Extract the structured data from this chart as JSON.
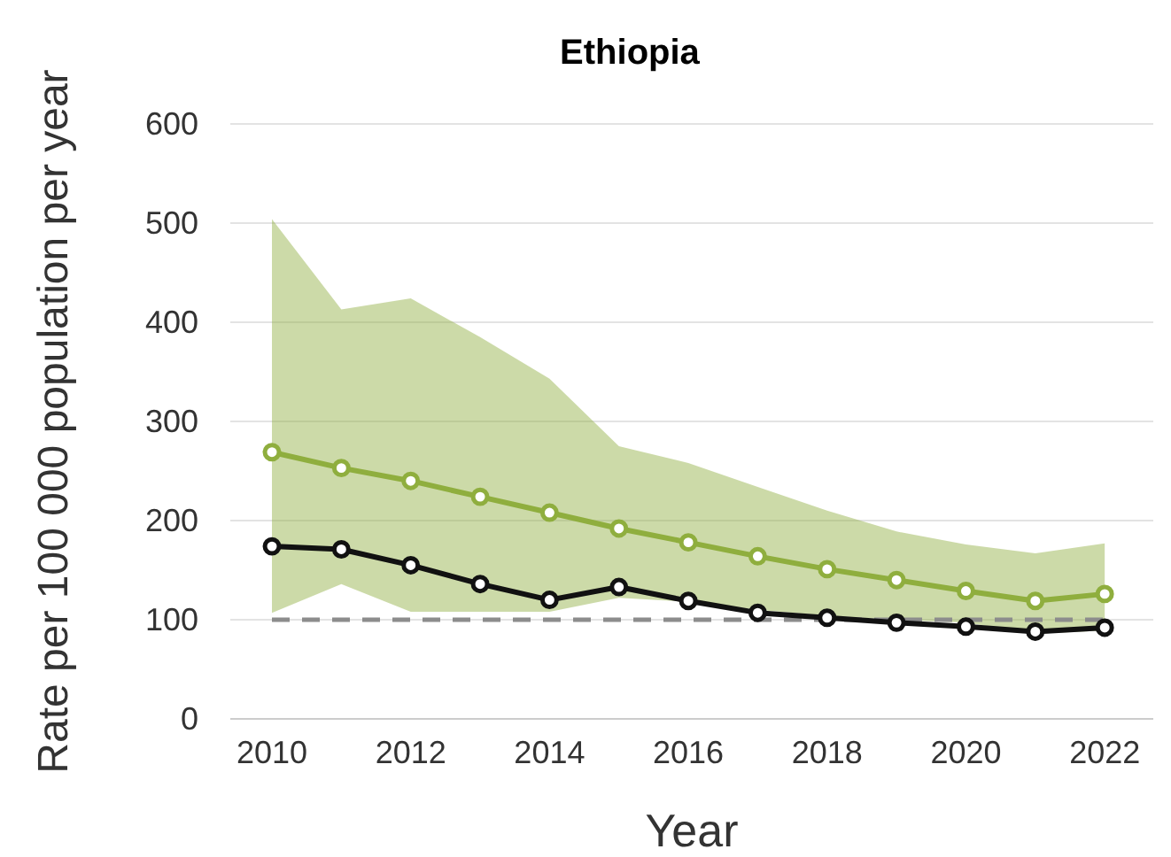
{
  "chart_data": {
    "type": "line",
    "title": "Ethiopia",
    "xlabel": "Year",
    "ylabel": "Rate per 100 000 population per year",
    "x": [
      2010,
      2011,
      2012,
      2013,
      2014,
      2015,
      2016,
      2017,
      2018,
      2019,
      2020,
      2021,
      2022
    ],
    "xlim": [
      2009.4,
      2022.7
    ],
    "xticks": [
      2010,
      2012,
      2014,
      2016,
      2018,
      2020,
      2022
    ],
    "ylim": [
      0,
      600
    ],
    "yticks": [
      0,
      100,
      200,
      300,
      400,
      500,
      600
    ],
    "grid": "y",
    "marker": "circle",
    "line_style": "solid",
    "ref_lines": [
      {
        "axis": "y",
        "value": 100,
        "color": "#8c8c8c",
        "line_style": "dashed"
      }
    ],
    "series": [
      {
        "color": "#8fae3e",
        "values": [
          269,
          253,
          240,
          224,
          208,
          192,
          178,
          164,
          151,
          140,
          129,
          119,
          126
        ],
        "lower": [
          107,
          136,
          108,
          108,
          108,
          122,
          118,
          110,
          104,
          100,
          97,
          86,
          89
        ],
        "upper": [
          504,
          413,
          424,
          385,
          343,
          275,
          258,
          234,
          210,
          189,
          176,
          167,
          177
        ]
      },
      {
        "color": "#111111",
        "values": [
          174,
          171,
          155,
          136,
          120,
          133,
          119,
          107,
          102,
          97,
          93,
          88,
          92
        ]
      }
    ]
  }
}
